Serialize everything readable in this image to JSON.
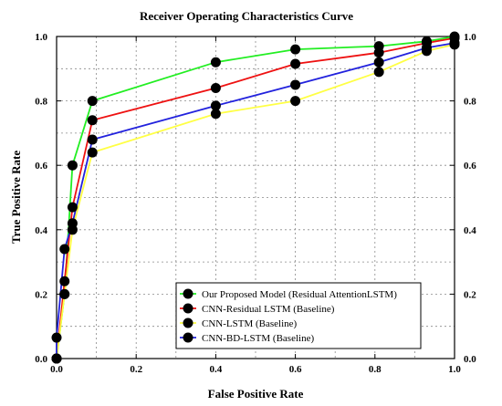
{
  "chart_data": {
    "type": "line",
    "title": "Receiver Operating Characteristics Curve",
    "xlabel": "False Positive Rate",
    "ylabel": "True Positive Rate",
    "xlim": [
      0,
      1
    ],
    "ylim": [
      0,
      1
    ],
    "x_ticks": [
      "0.0",
      "0.2",
      "0.4",
      "0.6",
      "0.8",
      "1.0"
    ],
    "y_ticks": [
      "0.0",
      "0.2",
      "0.4",
      "0.6",
      "0.8",
      "1.0"
    ],
    "right_y_ticks": true,
    "grid": true,
    "legend_position": "bottom-right",
    "marker_color": "#000000",
    "series": [
      {
        "name": "Our Proposed Model (Residual AttentionLSTM)",
        "color": "#22ee22",
        "x": [
          0.0,
          0.02,
          0.04,
          0.09,
          0.4,
          0.6,
          0.81,
          0.93,
          1.0
        ],
        "y": [
          0.0,
          0.2,
          0.6,
          0.8,
          0.92,
          0.96,
          0.97,
          0.985,
          1.0
        ]
      },
      {
        "name": "CNN-Residual LSTM (Baseline)",
        "color": "#ee1111",
        "x": [
          0.0,
          0.02,
          0.04,
          0.09,
          0.4,
          0.6,
          0.81,
          0.93,
          1.0
        ],
        "y": [
          0.0,
          0.24,
          0.47,
          0.74,
          0.84,
          0.915,
          0.95,
          0.98,
          0.995
        ]
      },
      {
        "name": "CNN-LSTM (Baseline)",
        "color": "#ffff44",
        "x": [
          0.0,
          0.02,
          0.04,
          0.09,
          0.4,
          0.6,
          0.81,
          0.93,
          1.0
        ],
        "y": [
          0.0,
          0.2,
          0.4,
          0.64,
          0.76,
          0.8,
          0.89,
          0.955,
          0.975
        ]
      },
      {
        "name": "CNN-BD-LSTM (Baseline)",
        "color": "#2222dd",
        "x": [
          0.0,
          0.0,
          0.02,
          0.04,
          0.09,
          0.4,
          0.6,
          0.81,
          0.93,
          1.0
        ],
        "y": [
          0.0,
          0.065,
          0.34,
          0.42,
          0.68,
          0.785,
          0.85,
          0.92,
          0.965,
          0.98
        ]
      }
    ]
  }
}
